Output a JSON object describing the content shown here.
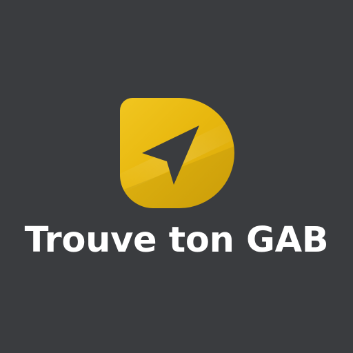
{
  "app": {
    "name": "Trouve ton GAB",
    "logo_icon": "navigation-arrow-icon"
  },
  "colors": {
    "background": "#3a3c3f",
    "logo_gold": "#e8b80f",
    "logo_gold_light": "#f5d132",
    "logo_gold_dark": "#c89a08",
    "arrow": "#3a3c3f",
    "text": "#ffffff"
  }
}
